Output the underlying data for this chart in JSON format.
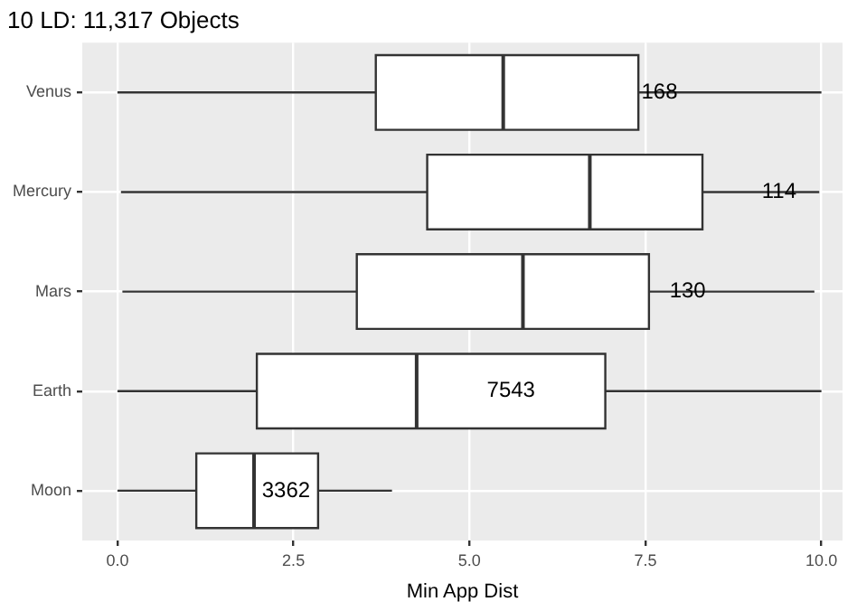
{
  "chart_data": {
    "type": "box",
    "title": "10 LD: 11,317 Objects",
    "xlabel": "Min App Dist",
    "orientation": "horizontal",
    "categories": [
      "Venus",
      "Mercury",
      "Mars",
      "Earth",
      "Moon"
    ],
    "boxes": [
      {
        "low": 0,
        "q1": 3.67,
        "median": 5.48,
        "q3": 7.4,
        "high": 10
      },
      {
        "low": 0.05,
        "q1": 4.4,
        "median": 6.71,
        "q3": 8.31,
        "high": 9.97
      },
      {
        "low": 0.07,
        "q1": 3.4,
        "median": 5.76,
        "q3": 7.55,
        "high": 9.9
      },
      {
        "low": 0,
        "q1": 1.98,
        "median": 4.25,
        "q3": 6.93,
        "high": 10
      },
      {
        "low": 0,
        "q1": 1.12,
        "median": 1.94,
        "q3": 2.85,
        "high": 3.9
      }
    ],
    "color": "#ffffff",
    "xlim": [
      -0.5,
      10.3
    ],
    "xticks": [
      {
        "value": 0,
        "label": "0.0"
      },
      {
        "value": 2.5,
        "label": "2.5"
      },
      {
        "value": 5,
        "label": "5.0"
      },
      {
        "value": 7.5,
        "label": "7.5"
      },
      {
        "value": 10,
        "label": "10.0"
      }
    ],
    "grid": true,
    "legend": false,
    "annotations": [
      {
        "text": "168",
        "x": 7.7,
        "y": "Venus"
      },
      {
        "text": "114",
        "x": 9.4,
        "y": "Mercury"
      },
      {
        "text": "130",
        "x": 8.1,
        "y": "Mars"
      },
      "7543",
      "3362"
    ]
  }
}
